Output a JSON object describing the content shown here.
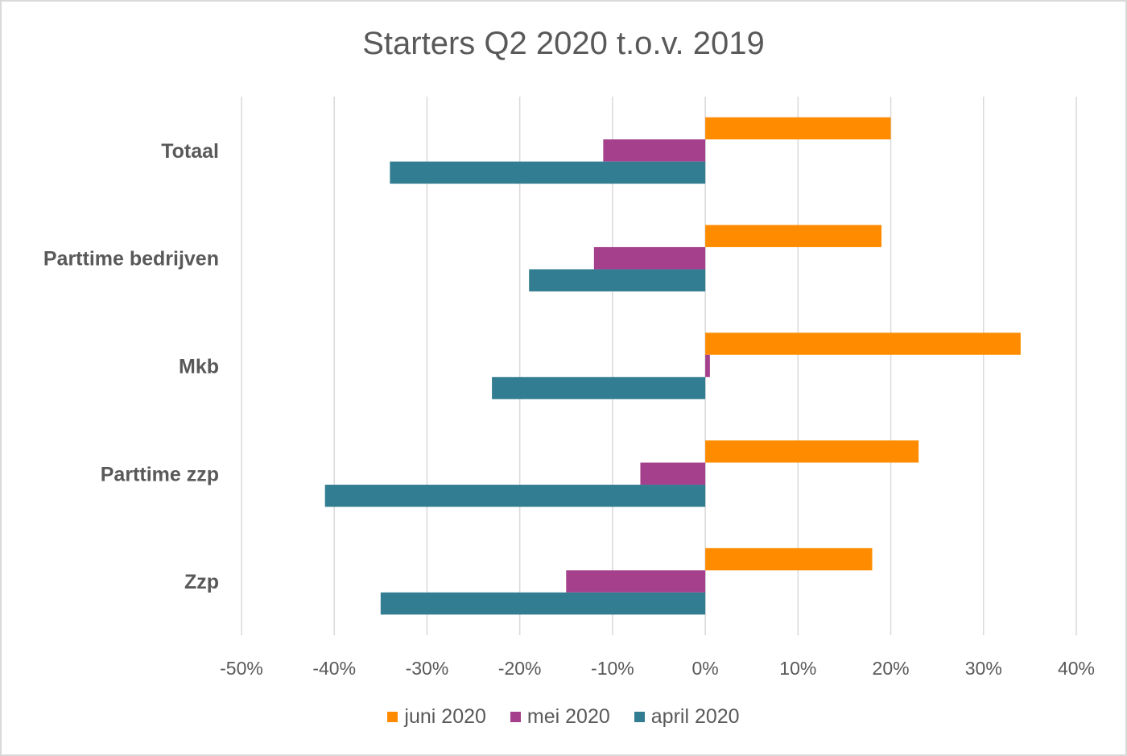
{
  "chart_data": {
    "type": "bar",
    "orientation": "horizontal",
    "title": "Starters Q2 2020 t.o.v. 2019",
    "categories": [
      "Totaal",
      "Parttime bedrijven",
      "Mkb",
      "Parttime zzp",
      "Zzp"
    ],
    "series": [
      {
        "name": "juni 2020",
        "color": "#ff8c00",
        "values": [
          20,
          19,
          34,
          23,
          18
        ]
      },
      {
        "name": "mei 2020",
        "color": "#a5418c",
        "values": [
          -11,
          -12,
          0.5,
          -7,
          -15
        ]
      },
      {
        "name": "april 2020",
        "color": "#327d91",
        "values": [
          -34,
          -19,
          -23,
          -41,
          -35
        ]
      }
    ],
    "xlim": [
      -50,
      40
    ],
    "xticks": [
      -50,
      -40,
      -30,
      -20,
      -10,
      0,
      10,
      20,
      30,
      40
    ],
    "xtick_labels": [
      "-50%",
      "-40%",
      "-30%",
      "-20%",
      "-10%",
      "0%",
      "10%",
      "20%",
      "30%",
      "40%"
    ],
    "grid": true,
    "legend_position": "bottom"
  }
}
